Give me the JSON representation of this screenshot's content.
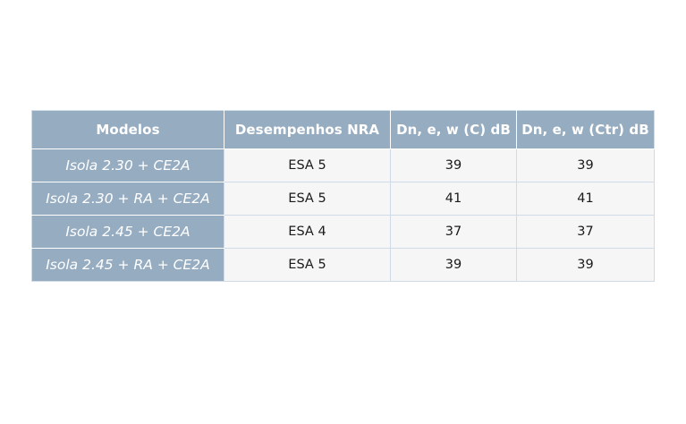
{
  "table": {
    "headers": [
      "Modelos",
      "Desempenhos NRA",
      "Dn, e, w (C) dB",
      "Dn, e, w (Ctr) dB"
    ],
    "rows": [
      {
        "model": "Isola 2.30 + CE2A",
        "nra": "ESA 5",
        "c": "39",
        "ctr": "39"
      },
      {
        "model": "Isola 2.30 + RA + CE2A",
        "nra": "ESA 5",
        "c": "41",
        "ctr": "41"
      },
      {
        "model": "Isola 2.45 + CE2A",
        "nra": "ESA 4",
        "c": "37",
        "ctr": "37"
      },
      {
        "model": "Isola 2.45 + RA + CE2A",
        "nra": "ESA 5",
        "c": "39",
        "ctr": "39"
      }
    ]
  },
  "colors": {
    "header_bg": "#96acc1",
    "cell_bg": "#f6f6f6",
    "border": "#cfdbe6"
  }
}
